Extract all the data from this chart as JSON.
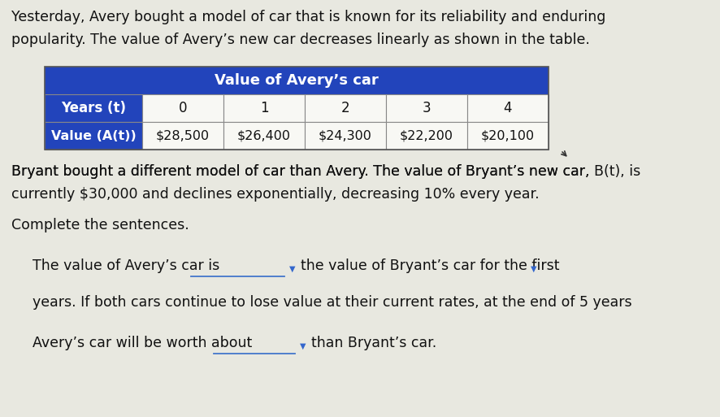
{
  "bg_color": "#e8e8e0",
  "table_bg": "#f0f0e8",
  "title_text1": "Yesterday, Avery bought a model of car that is known for its reliability and enduring",
  "title_text2": "popularity. The value of Avery’s new car decreases linearly as shown in the table.",
  "table_header": "Value of Avery’s car",
  "table_header_bg": "#2244bb",
  "table_header_color": "#ffffff",
  "row1_label": "Years (t)",
  "row2_label": "Value (A(t))",
  "years": [
    "0",
    "1",
    "2",
    "3",
    "4"
  ],
  "values": [
    "$28,500",
    "$26,400",
    "$24,300",
    "$22,200",
    "$20,100"
  ],
  "row_label_bg": "#2244bb",
  "row_label_color": "#ffffff",
  "cell_bg": "#f8f8f4",
  "cell_color": "#111111",
  "border_color": "#888888",
  "para2_line1": "Bryant bought a different model of car than Avery. The value of Bryant’s new car, B(t), is",
  "para2_line2": "currently $30,000 and declines exponentially, decreasing 10% every year.",
  "para3": "Complete the sentences.",
  "sentence1_pre": "The value of Avery’s car is",
  "sentence1_post": "the value of Bryant’s car for the first",
  "sentence2": "years. If both cars continue to lose value at their current rates, at the end of 5 years",
  "sentence3_pre": "Avery’s car will be worth about",
  "sentence3_post": "than Bryant’s car.",
  "dropdown_color": "#3366cc",
  "underline_color": "#4477cc",
  "text_color": "#111111",
  "font_size_body": 12.5,
  "font_size_table_data": 12,
  "font_size_table_header": 13,
  "italic_bt": "B(t)"
}
